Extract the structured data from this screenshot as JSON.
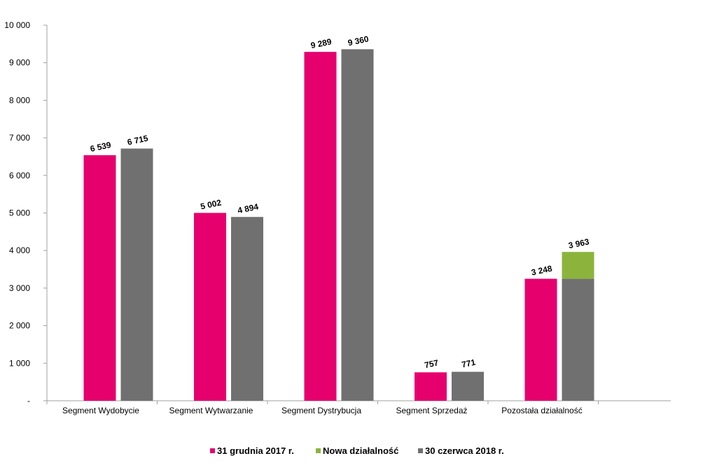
{
  "colors": {
    "pink": "#e6006e",
    "green": "#8cb43c",
    "gray": "#707070",
    "axis": "#a0a0a0"
  },
  "chart_data": {
    "type": "bar",
    "categories": [
      "Segment Wydobycie",
      "Segment Wytwarzanie",
      "Segment Dystrybucja",
      "Segment Sprzedaż",
      "Pozostała działalność"
    ],
    "series": [
      {
        "name": "31 grudnia 2017 r.",
        "values": [
          6539,
          5002,
          9289,
          757,
          3248
        ],
        "labels": [
          "6 539",
          "5 002",
          "9 289",
          "757",
          "3 248"
        ]
      },
      {
        "name": "30 czerwca 2018 r.",
        "values": [
          6715,
          4894,
          9360,
          771,
          3248
        ],
        "labels": [
          "6 715",
          "4 894",
          "9 360",
          "771",
          ""
        ]
      },
      {
        "name": "Nowa działalność",
        "stacked_on": "30 czerwca 2018 r.",
        "values": [
          0,
          0,
          0,
          0,
          715
        ],
        "labels": [
          "",
          "",
          "",
          "",
          "3 963"
        ]
      }
    ],
    "y_ticks": [
      0,
      1000,
      2000,
      3000,
      4000,
      5000,
      6000,
      7000,
      8000,
      9000,
      10000
    ],
    "y_tick_labels": [
      "-",
      "1 000",
      "2 000",
      "3 000",
      "4 000",
      "5 000",
      "6 000",
      "7 000",
      "8 000",
      "9 000",
      "10 000"
    ],
    "ylim": [
      0,
      10000
    ],
    "grid": false,
    "legend": {
      "placement": "bottom",
      "entries": [
        {
          "label": "31 grudnia 2017 r.",
          "color": "#e6006e"
        },
        {
          "label": "Nowa działalność",
          "color": "#8cb43c"
        },
        {
          "label": "30 czerwca 2018 r.",
          "color": "#707070"
        }
      ]
    }
  }
}
